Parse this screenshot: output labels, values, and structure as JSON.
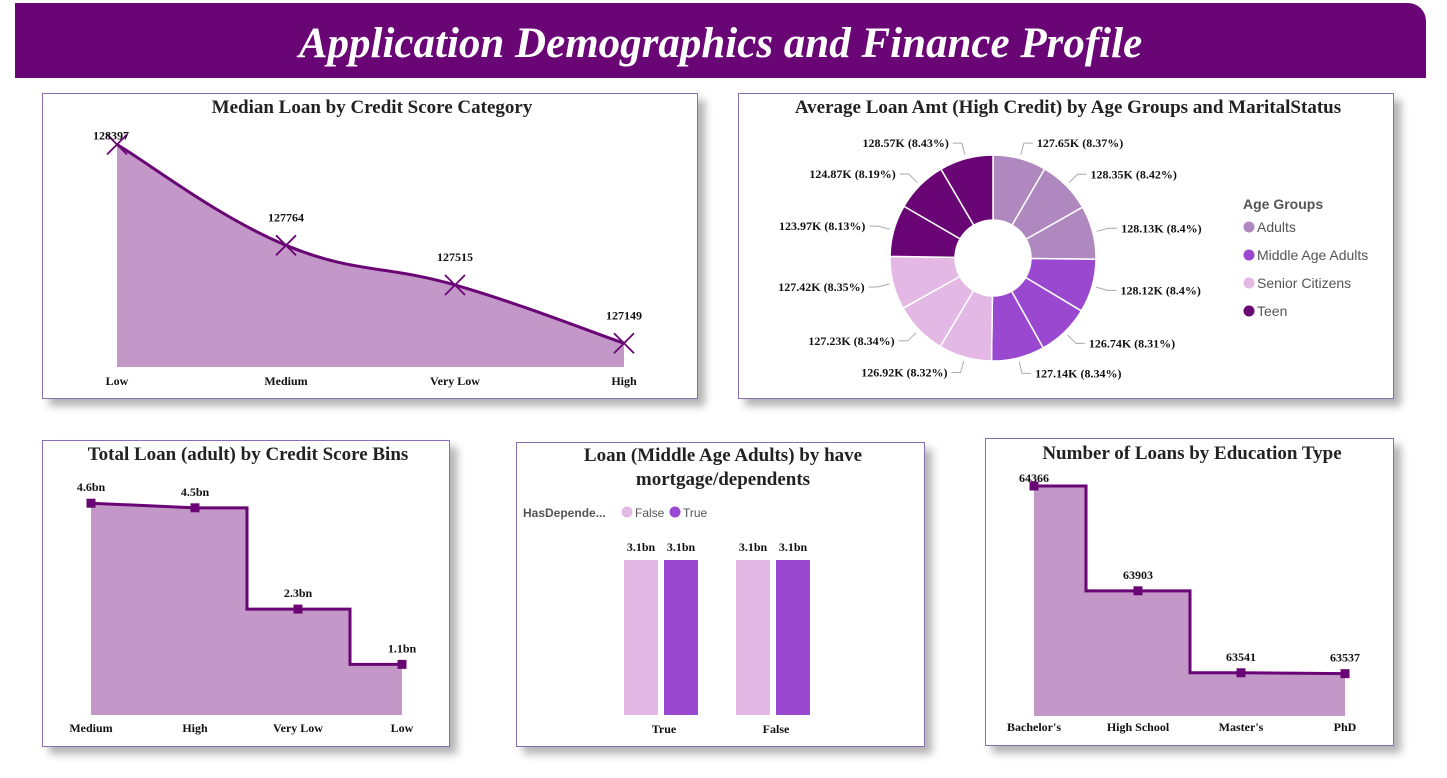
{
  "header": {
    "title": "Application Demographics and Finance Profile"
  },
  "colors": {
    "header": "#6a0575",
    "line": "#6a0575",
    "area": "#c398c8",
    "adults": "#b088c0",
    "middle": "#9a48d0",
    "senior": "#e4b8e4",
    "teen": "#6a0575"
  },
  "chart_data": [
    {
      "type": "area",
      "title": "Median Loan by Credit Score Category",
      "categories": [
        "Low",
        "Medium",
        "Very Low",
        "High"
      ],
      "values": [
        128397,
        127764,
        127515,
        127149
      ],
      "data_labels": [
        "128397",
        "127764",
        "127515",
        "127149"
      ],
      "ylim": [
        127000,
        128400
      ]
    },
    {
      "type": "pie",
      "title": "Average Loan Amt (High Credit) by Age Groups and MaritalStatus",
      "legend_title": "Age Groups",
      "legend": [
        "Adults",
        "Middle Age Adults",
        "Senior Citizens",
        "Teen"
      ],
      "legend_position": "right",
      "slices": [
        {
          "group": "Adults",
          "value": 127.65,
          "label": "127.65K (8.37%)"
        },
        {
          "group": "Adults",
          "value": 128.35,
          "label": "128.35K (8.42%)"
        },
        {
          "group": "Adults",
          "value": 128.13,
          "label": "128.13K (8.4%)"
        },
        {
          "group": "Middle Age Adults",
          "value": 128.12,
          "label": "128.12K (8.4%)"
        },
        {
          "group": "Middle Age Adults",
          "value": 126.74,
          "label": "126.74K (8.31%)"
        },
        {
          "group": "Middle Age Adults",
          "value": 127.14,
          "label": "127.14K (8.34%)"
        },
        {
          "group": "Senior Citizens",
          "value": 126.92,
          "label": "126.92K (8.32%)"
        },
        {
          "group": "Senior Citizens",
          "value": 127.23,
          "label": "127.23K (8.34%)"
        },
        {
          "group": "Senior Citizens",
          "value": 127.42,
          "label": "127.42K (8.35%)"
        },
        {
          "group": "Teen",
          "value": 123.97,
          "label": "123.97K (8.13%)"
        },
        {
          "group": "Teen",
          "value": 124.87,
          "label": "124.87K (8.19%)"
        },
        {
          "group": "Teen",
          "value": 128.57,
          "label": "128.57K (8.43%)"
        }
      ]
    },
    {
      "type": "area",
      "title": "Total Loan (adult) by Credit Score Bins",
      "categories": [
        "Medium",
        "High",
        "Very Low",
        "Low"
      ],
      "values": [
        4.6,
        4.5,
        2.3,
        1.1
      ],
      "data_labels": [
        "4.6bn",
        "4.5bn",
        "2.3bn",
        "1.1bn"
      ],
      "ylim": [
        0,
        4.8
      ]
    },
    {
      "type": "bar",
      "title": [
        "Loan (Middle Age Adults) by have",
        "mortgage/dependents"
      ],
      "legend_title": "HasDepende...",
      "legend_position": "top-left",
      "categories": [
        "True",
        "False"
      ],
      "series": [
        {
          "name": "False",
          "values": [
            3.1,
            3.1
          ],
          "labels": [
            "3.1bn",
            "3.1bn"
          ]
        },
        {
          "name": "True",
          "values": [
            3.1,
            3.1
          ],
          "labels": [
            "3.1bn",
            "3.1bn"
          ]
        }
      ],
      "ylim": [
        0,
        3.1
      ]
    },
    {
      "type": "area",
      "title": "Number of Loans by Education Type",
      "categories": [
        "Bachelor's",
        "High School",
        "Master's",
        "PhD"
      ],
      "values": [
        64366,
        63903,
        63541,
        63537
      ],
      "data_labels": [
        "64366",
        "63903",
        "63541",
        "63537"
      ],
      "ylim": [
        63350,
        64366
      ]
    }
  ]
}
